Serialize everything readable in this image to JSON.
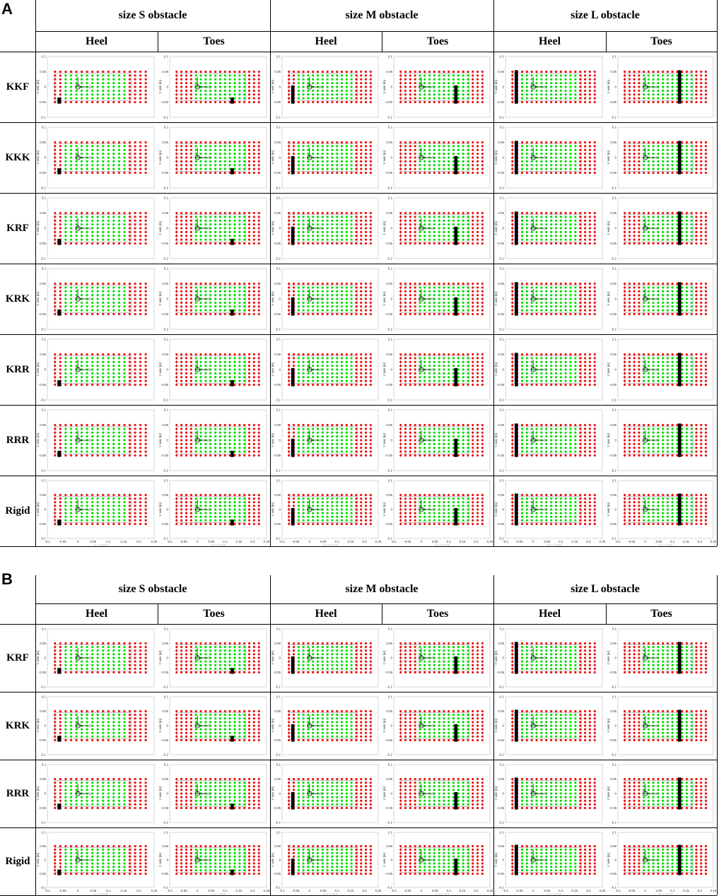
{
  "panels": [
    {
      "letter": "A",
      "obstacle_headers": [
        "size S obstacle",
        "size M obstacle",
        "size L obstacle"
      ],
      "position_headers": [
        "Heel",
        "Toes",
        "Heel",
        "Toes",
        "Heel",
        "Toes"
      ],
      "rows": [
        "KKF",
        "KKK",
        "KRF",
        "KRK",
        "KRR",
        "RRR",
        "Rigid"
      ]
    },
    {
      "letter": "B",
      "obstacle_headers": [
        "size S obstacle",
        "size M obstacle",
        "size L obstacle"
      ],
      "position_headers": [
        "Heel",
        "Toes",
        "Heel",
        "Toes",
        "Heel",
        "Toes"
      ],
      "rows": [
        "KRF",
        "KRK",
        "RRR",
        "Rigid"
      ]
    }
  ],
  "axes": {
    "x_label": "X axis [m]",
    "y_label": "Y axis [m]",
    "x_ticks": [
      "-0.1",
      "-0.05",
      "0",
      "0.05",
      "0.1",
      "0.15",
      "0.2",
      "0.25"
    ],
    "y_ticks": [
      "0.1",
      "0.05",
      "0",
      "-0.05",
      "-0.1"
    ],
    "axis_marker": "xG"
  },
  "colors": {
    "stable_point": "#00dd00",
    "unstable_point": "#ee1111",
    "obstacle": "#000000"
  }
}
